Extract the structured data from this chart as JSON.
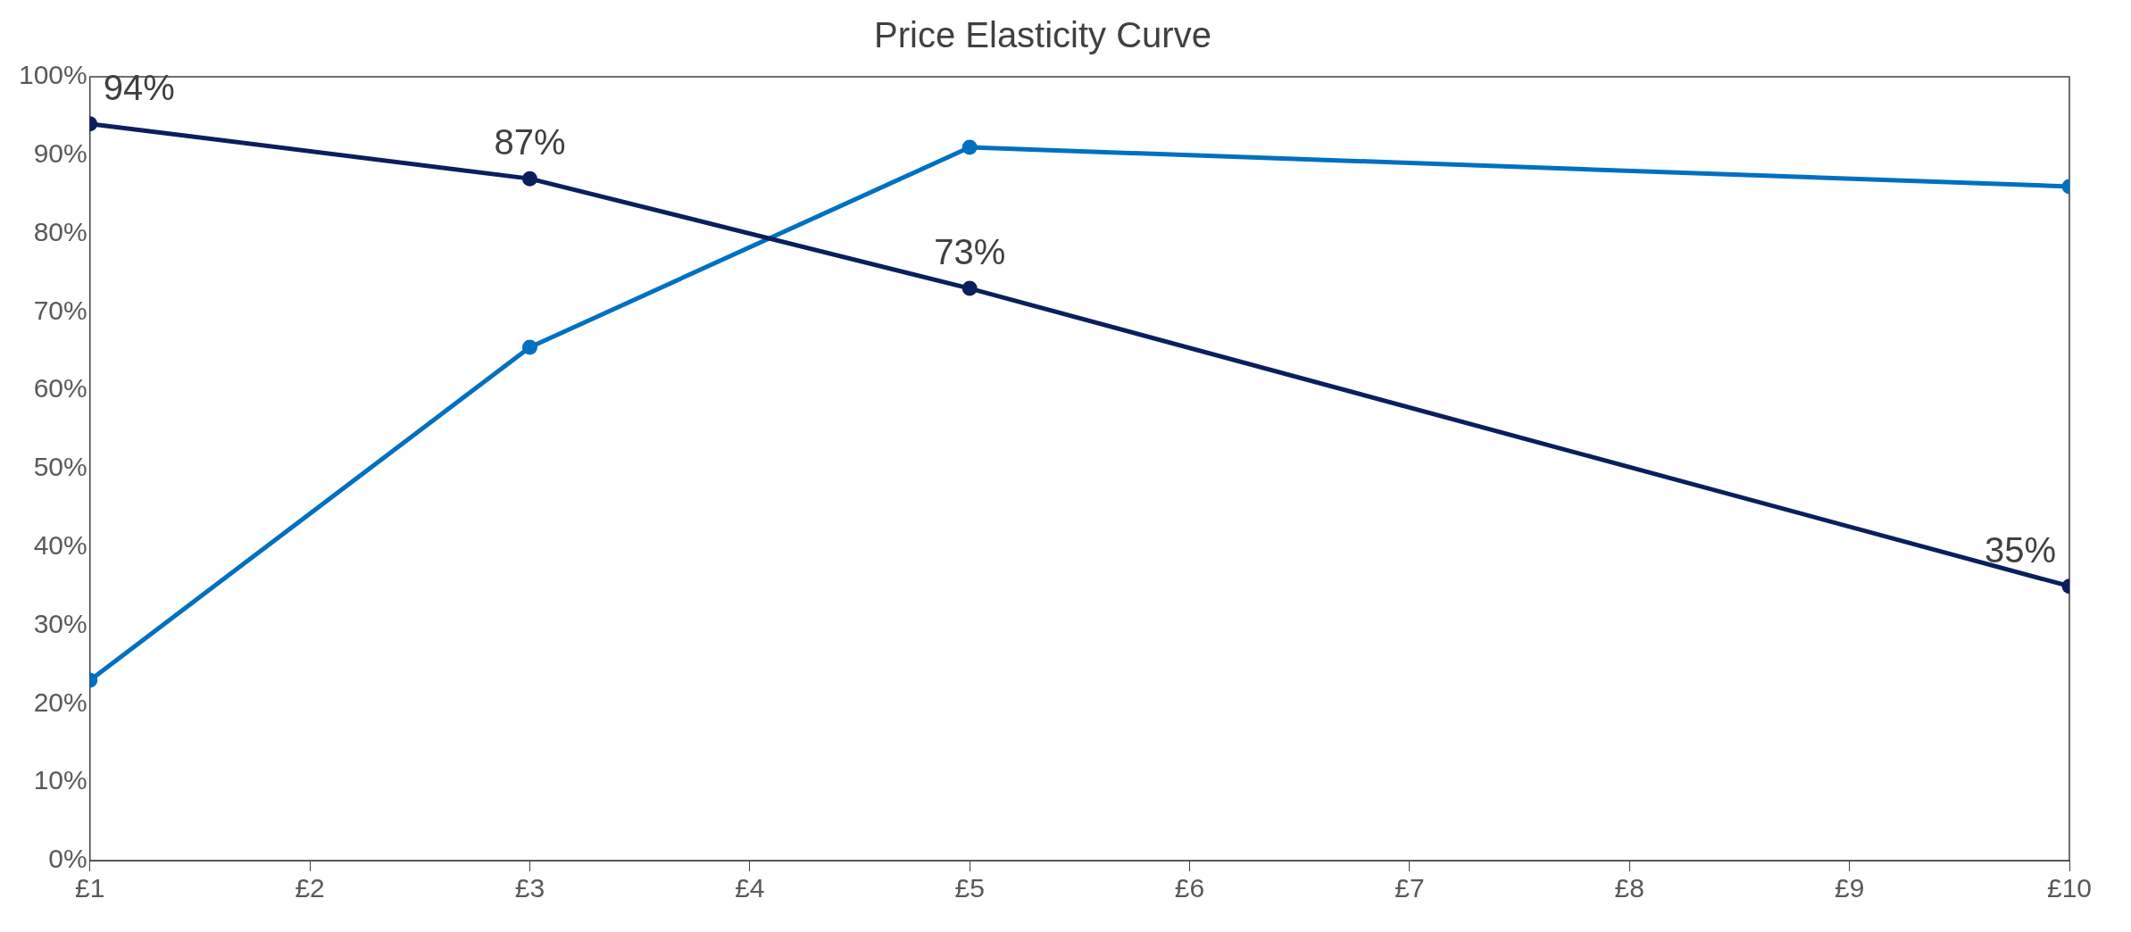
{
  "chart_data": {
    "type": "line",
    "title": "Price Elasticity Curve",
    "xlim": [
      1,
      10
    ],
    "xticks": [
      {
        "value": 1,
        "label": "£1"
      },
      {
        "value": 2,
        "label": "£2"
      },
      {
        "value": 3,
        "label": "£3"
      },
      {
        "value": 4,
        "label": "£4"
      },
      {
        "value": 5,
        "label": "£5"
      },
      {
        "value": 6,
        "label": "£6"
      },
      {
        "value": 7,
        "label": "£7"
      },
      {
        "value": 8,
        "label": "£8"
      },
      {
        "value": 9,
        "label": "£9"
      },
      {
        "value": 10,
        "label": "£10"
      }
    ],
    "ylim": [
      0,
      100
    ],
    "yticks": [
      {
        "value": 0,
        "label": "0%"
      },
      {
        "value": 10,
        "label": "10%"
      },
      {
        "value": 20,
        "label": "20%"
      },
      {
        "value": 30,
        "label": "30%"
      },
      {
        "value": 40,
        "label": "40%"
      },
      {
        "value": 50,
        "label": "50%"
      },
      {
        "value": 60,
        "label": "60%"
      },
      {
        "value": 70,
        "label": "70%"
      },
      {
        "value": 80,
        "label": "80%"
      },
      {
        "value": 90,
        "label": "90%"
      },
      {
        "value": 100,
        "label": "100%"
      }
    ],
    "x": [
      1,
      3,
      5,
      10
    ],
    "series": [
      {
        "color": "#0a1f5c",
        "values": [
          94,
          87,
          73,
          35
        ],
        "value_labels": [
          "94%",
          "87%",
          "73%",
          "35%"
        ]
      },
      {
        "color": "#0070c0",
        "values": [
          23,
          65.5,
          91,
          86
        ]
      }
    ],
    "marker": "circle",
    "line_style": "solid",
    "grid": false,
    "legend": false
  }
}
